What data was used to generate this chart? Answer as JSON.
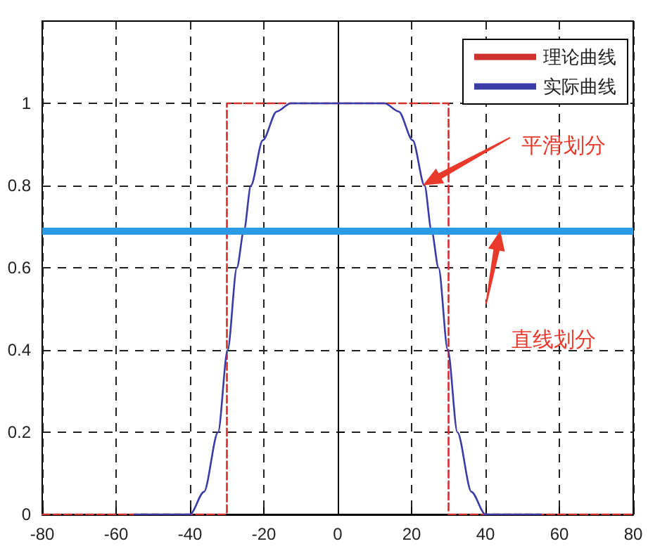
{
  "chart_data": {
    "type": "line",
    "series": [
      {
        "name": "理论曲线",
        "color": "#d0312d",
        "line_style": "dashed",
        "x": [
          -80,
          -30,
          -30,
          30,
          30,
          80
        ],
        "values": [
          0,
          0,
          1,
          1,
          0,
          0
        ]
      },
      {
        "name": "实际曲线",
        "color": "#3a3aa8",
        "line_style": "solid",
        "x": [
          -55,
          -40,
          -36.2,
          -32.4,
          -29.8,
          -27.3,
          -25.4,
          -23.5,
          -20.3,
          -16.5,
          -12.7,
          0,
          12.7,
          16.5,
          20.3,
          23.5,
          25.4,
          27.3,
          29.8,
          32.4,
          36.2,
          40,
          55
        ],
        "values": [
          0,
          0,
          0.055,
          0.2,
          0.4,
          0.6,
          0.69,
          0.8,
          0.91,
          0.98,
          1,
          1,
          1,
          0.98,
          0.91,
          0.8,
          0.69,
          0.6,
          0.4,
          0.2,
          0.055,
          0,
          0
        ]
      }
    ],
    "xlim": [
      -80,
      80
    ],
    "xticks": [
      -80,
      -60,
      -40,
      -20,
      0,
      20,
      40,
      60,
      80
    ],
    "ylim": [
      0,
      1.2
    ],
    "yticks": [
      0,
      0.2,
      0.4,
      0.6,
      0.8,
      1
    ],
    "ref_lines": [
      {
        "axis": "y",
        "value": 0.69,
        "color": "#2b9be8"
      }
    ],
    "annotations": [
      "平滑划分",
      "直线划分"
    ],
    "grid": true,
    "legend": "top right",
    "marker": "none"
  }
}
